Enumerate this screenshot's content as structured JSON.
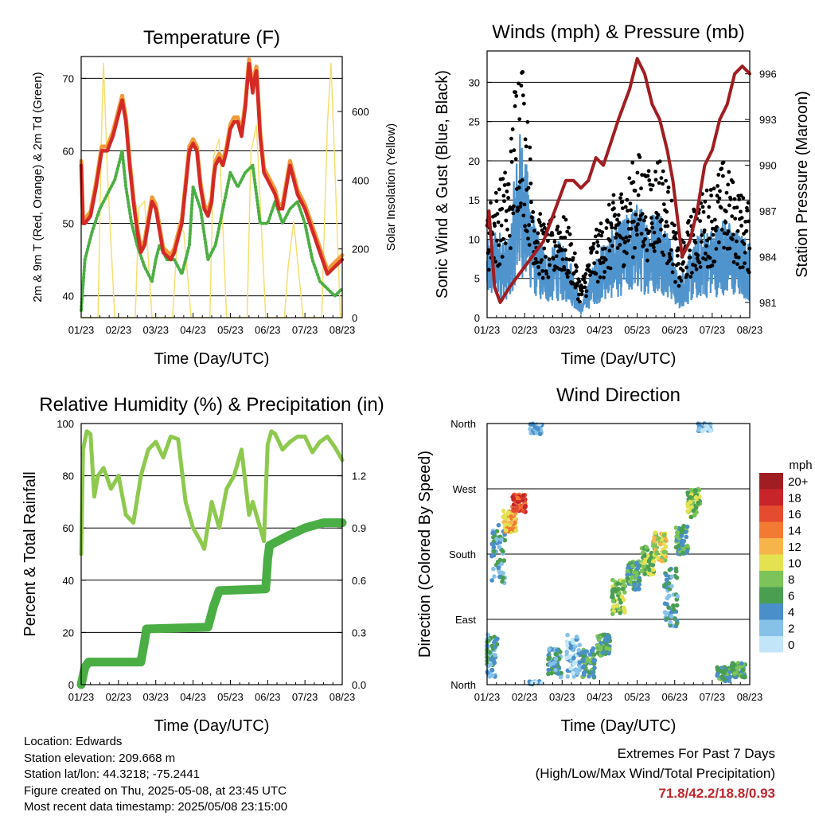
{
  "chart_data": [
    {
      "type": "line",
      "title": "Temperature (F)",
      "xlabel": "Time (Day/UTC)",
      "ylabel": "2m & 9m T (Red, Orange) & 2m Td (Green)",
      "y2label": "Solar Insolation (Yellow)",
      "x_ticks": [
        "01/23",
        "02/23",
        "03/23",
        "04/23",
        "05/23",
        "06/23",
        "07/23",
        "08/23"
      ],
      "ylim": [
        37,
        73
      ],
      "y_ticks": [
        40,
        50,
        60,
        70
      ],
      "y2lim": [
        0,
        760
      ],
      "y2_ticks": [
        0,
        200,
        400,
        600
      ],
      "x_days": [
        1,
        8
      ],
      "colors": {
        "t2m": "#d42a26",
        "t9m": "#f29a3a",
        "td": "#4cae44",
        "solar": "#f5df6e"
      },
      "series": [
        {
          "name": "2m T",
          "x": [
            1.0,
            1.05,
            1.1,
            1.25,
            1.4,
            1.55,
            1.7,
            1.85,
            2.0,
            2.1,
            2.2,
            2.3,
            2.4,
            2.5,
            2.6,
            2.7,
            2.8,
            2.9,
            3.0,
            3.2,
            3.4,
            3.5,
            3.6,
            3.7,
            3.8,
            3.9,
            4.0,
            4.1,
            4.2,
            4.3,
            4.4,
            4.5,
            4.55,
            4.6,
            4.7,
            4.8,
            4.9,
            5.0,
            5.1,
            5.2,
            5.3,
            5.4,
            5.5,
            5.55,
            5.6,
            5.65,
            5.7,
            5.8,
            5.9,
            6.0,
            6.1,
            6.2,
            6.3,
            6.4,
            6.5,
            6.6,
            6.8,
            7.0,
            7.2,
            7.4,
            7.6,
            7.8,
            8.0
          ],
          "y": [
            58,
            50,
            50,
            51,
            55,
            60,
            60,
            62,
            65,
            67,
            64,
            58,
            53,
            49,
            46,
            47,
            50,
            53,
            52,
            46,
            45,
            46,
            48,
            50,
            55,
            60,
            61,
            60,
            55,
            52,
            51,
            53,
            56,
            58,
            59,
            58,
            60,
            63,
            64,
            64,
            62,
            66,
            72,
            70,
            68,
            70,
            71,
            62,
            57,
            56,
            55,
            54,
            52,
            52,
            55,
            58,
            54,
            52,
            49,
            46,
            43,
            44,
            45
          ]
        },
        {
          "name": "2m Td",
          "x": [
            1.0,
            1.1,
            1.3,
            1.5,
            1.7,
            1.9,
            2.0,
            2.1,
            2.2,
            2.35,
            2.5,
            2.7,
            2.9,
            3.0,
            3.1,
            3.3,
            3.5,
            3.7,
            3.9,
            4.0,
            4.2,
            4.4,
            4.6,
            4.8,
            5.0,
            5.2,
            5.4,
            5.6,
            5.8,
            6.0,
            6.2,
            6.4,
            6.6,
            6.8,
            7.0,
            7.2,
            7.4,
            7.6,
            7.8,
            8.0
          ],
          "y": [
            38,
            45,
            49,
            52,
            54,
            56,
            58,
            60,
            55,
            50,
            47,
            44,
            42,
            45,
            47,
            45,
            45,
            43,
            47,
            55,
            52,
            45,
            47,
            52,
            57,
            55,
            57,
            58,
            50,
            50,
            53,
            50,
            52,
            53,
            50,
            45,
            42,
            41,
            40,
            41
          ]
        },
        {
          "name": "Solar Insolation",
          "x": [
            1.0,
            1.45,
            1.55,
            1.6,
            1.7,
            1.9,
            2.45,
            2.55,
            2.7,
            2.9,
            3.45,
            3.6,
            3.75,
            3.95,
            4.45,
            4.55,
            4.7,
            4.9,
            5.45,
            5.55,
            5.7,
            5.95,
            6.45,
            6.55,
            6.7,
            6.95,
            7.45,
            7.6,
            7.7,
            7.95,
            8.0
          ],
          "y": [
            0,
            0,
            560,
            740,
            430,
            0,
            0,
            320,
            340,
            0,
            0,
            270,
            250,
            0,
            0,
            470,
            520,
            0,
            0,
            480,
            560,
            0,
            0,
            150,
            280,
            0,
            0,
            560,
            740,
            0,
            0
          ]
        }
      ]
    },
    {
      "type": "line",
      "title": "Winds (mph) & Pressure (mb)",
      "xlabel": "Time (Day/UTC)",
      "ylabel": "Sonic Wind & Gust (Blue, Black)",
      "y2label": "Station Pressure (Maroon)",
      "x_ticks": [
        "01/23",
        "02/23",
        "03/23",
        "04/23",
        "05/23",
        "06/23",
        "07/23",
        "08/23"
      ],
      "ylim": [
        0,
        34
      ],
      "y_ticks": [
        0,
        5,
        10,
        15,
        20,
        25,
        30
      ],
      "y2lim": [
        980,
        997.5
      ],
      "y2_ticks": [
        981,
        984,
        987,
        990,
        993,
        996
      ],
      "x_days": [
        1,
        8
      ],
      "colors": {
        "wind": "#4f94cd",
        "gust": "#000000",
        "pressure": "#a11d21"
      },
      "series": [
        {
          "name": "Wind",
          "x": [
            1.0,
            1.3,
            1.6,
            1.75,
            1.9,
            2.1,
            2.3,
            2.6,
            2.9,
            3.2,
            3.5,
            3.8,
            4.1,
            4.4,
            4.7,
            5.0,
            5.3,
            5.6,
            5.9,
            6.1,
            6.4,
            6.7,
            7.0,
            7.3,
            7.6,
            8.0
          ],
          "y": [
            6,
            7,
            6,
            12,
            15,
            11,
            7,
            5,
            6,
            5,
            1,
            4,
            6,
            7,
            8,
            9,
            8,
            9,
            6,
            3,
            5,
            7,
            7,
            8,
            7,
            6
          ]
        },
        {
          "name": "Gust",
          "x": [
            1.0,
            1.3,
            1.6,
            1.75,
            1.9,
            2.1,
            2.3,
            2.6,
            2.9,
            3.2,
            3.5,
            3.8,
            4.1,
            4.4,
            4.7,
            5.0,
            5.3,
            5.6,
            5.9,
            6.1,
            6.4,
            6.7,
            7.0,
            7.3,
            7.6,
            8.0
          ],
          "y": [
            10,
            12,
            14,
            22,
            25,
            17,
            10,
            8,
            10,
            8,
            3,
            7,
            9,
            11,
            12,
            15,
            13,
            15,
            11,
            6,
            9,
            11,
            12,
            14,
            12,
            10
          ]
        },
        {
          "name": "Station Pressure",
          "x": [
            1.0,
            1.05,
            1.2,
            1.35,
            1.6,
            1.9,
            2.2,
            2.5,
            2.8,
            3.1,
            3.3,
            3.5,
            3.7,
            3.9,
            4.1,
            4.3,
            4.5,
            4.8,
            5.0,
            5.2,
            5.4,
            5.6,
            5.8,
            5.95,
            6.2,
            6.4,
            6.6,
            6.8,
            7.0,
            7.2,
            7.4,
            7.6,
            7.8,
            8.0
          ],
          "y": [
            986,
            987,
            982,
            981,
            982,
            983,
            984,
            985,
            987,
            989,
            989,
            988.5,
            989,
            990.5,
            990,
            991.5,
            993,
            995,
            997,
            996,
            994,
            993,
            991,
            989,
            984,
            985,
            987,
            990,
            991,
            993,
            994,
            996,
            996.5,
            996
          ]
        }
      ]
    },
    {
      "type": "line",
      "title": "Relative Humidity (%) & Precipitation (in)",
      "xlabel": "Time (Day/UTC)",
      "ylabel": "Percent & Total Rainfall",
      "x_ticks": [
        "01/23",
        "02/23",
        "03/23",
        "04/23",
        "05/23",
        "06/23",
        "07/23",
        "08/23"
      ],
      "ylim": [
        0,
        100
      ],
      "y_ticks": [
        0,
        20,
        40,
        60,
        80,
        100
      ],
      "y2lim": [
        0,
        1.5
      ],
      "y2_ticks": [
        0.0,
        0.3,
        0.6,
        0.9,
        1.2
      ],
      "x_days": [
        1,
        8
      ],
      "colors": {
        "rh": "#8dc94e",
        "precip": "#4aae45"
      },
      "series": [
        {
          "name": "Relative Humidity",
          "x": [
            1.0,
            1.05,
            1.15,
            1.25,
            1.35,
            1.45,
            1.6,
            1.8,
            2.0,
            2.2,
            2.4,
            2.6,
            2.8,
            3.0,
            3.2,
            3.4,
            3.6,
            3.8,
            4.0,
            4.2,
            4.3,
            4.5,
            4.7,
            4.9,
            5.1,
            5.3,
            5.5,
            5.6,
            5.8,
            5.9,
            6.0,
            6.1,
            6.2,
            6.4,
            6.6,
            6.8,
            7.0,
            7.2,
            7.4,
            7.6,
            7.8,
            8.0
          ],
          "y": [
            50,
            90,
            97,
            96,
            72,
            80,
            83,
            75,
            80,
            65,
            62,
            80,
            90,
            93,
            87,
            95,
            94,
            70,
            60,
            55,
            52,
            70,
            60,
            75,
            80,
            90,
            65,
            70,
            60,
            55,
            92,
            97,
            96,
            90,
            93,
            95,
            95,
            89,
            93,
            95,
            91,
            86
          ]
        },
        {
          "name": "Total Precipitation",
          "x": [
            1.0,
            1.1,
            1.2,
            2.6,
            2.7,
            2.75,
            4.4,
            4.55,
            4.7,
            5.95,
            6.0,
            6.05,
            6.5,
            7.0,
            7.5,
            8.0
          ],
          "y": [
            0.0,
            0.1,
            0.13,
            0.13,
            0.25,
            0.32,
            0.33,
            0.45,
            0.54,
            0.55,
            0.72,
            0.8,
            0.85,
            0.9,
            0.93,
            0.93
          ]
        }
      ]
    },
    {
      "type": "scatter",
      "title": "Wind Direction",
      "xlabel": "Time (Day/UTC)",
      "ylabel": "Direction (Colored By Speed)",
      "x_ticks": [
        "01/23",
        "02/23",
        "03/23",
        "04/23",
        "05/23",
        "06/23",
        "07/23",
        "08/23"
      ],
      "y_ticks": [
        "North",
        "East",
        "South",
        "West",
        "North"
      ],
      "ylim": [
        0,
        360
      ],
      "x_days": [
        1,
        8
      ],
      "legend_title": "mph",
      "legend_labels": [
        "0",
        "2",
        "4",
        "6",
        "8",
        "10",
        "12",
        "14",
        "16",
        "18",
        "20+"
      ],
      "legend_colors": [
        "#c2e6f7",
        "#86c1e8",
        "#4a8fc9",
        "#4a9e52",
        "#7cc35a",
        "#e5e251",
        "#f7b44a",
        "#f37a32",
        "#e44b2f",
        "#c8252a",
        "#a01d22"
      ],
      "clusters": [
        {
          "x": 1.1,
          "dir": 40,
          "spread": 30,
          "speed": 4
        },
        {
          "x": 1.3,
          "dir": 180,
          "spread": 40,
          "speed": 4
        },
        {
          "x": 1.6,
          "dir": 225,
          "spread": 15,
          "speed": 12
        },
        {
          "x": 1.85,
          "dir": 250,
          "spread": 12,
          "speed": 16
        },
        {
          "x": 2.3,
          "dir": 355,
          "spread": 10,
          "speed": 2
        },
        {
          "x": 2.8,
          "dir": 30,
          "spread": 20,
          "speed": 4
        },
        {
          "x": 3.3,
          "dir": 40,
          "spread": 30,
          "speed": 2
        },
        {
          "x": 3.7,
          "dir": 30,
          "spread": 20,
          "speed": 6
        },
        {
          "x": 4.1,
          "dir": 55,
          "spread": 15,
          "speed": 6
        },
        {
          "x": 4.5,
          "dir": 120,
          "spread": 25,
          "speed": 8
        },
        {
          "x": 4.9,
          "dir": 150,
          "spread": 20,
          "speed": 6
        },
        {
          "x": 5.3,
          "dir": 170,
          "spread": 20,
          "speed": 8
        },
        {
          "x": 5.6,
          "dir": 190,
          "spread": 20,
          "speed": 10
        },
        {
          "x": 5.9,
          "dir": 120,
          "spread": 40,
          "speed": 4
        },
        {
          "x": 6.2,
          "dir": 200,
          "spread": 20,
          "speed": 6
        },
        {
          "x": 6.5,
          "dir": 250,
          "spread": 20,
          "speed": 8
        },
        {
          "x": 6.8,
          "dir": 355,
          "spread": 5,
          "speed": 2
        },
        {
          "x": 7.3,
          "dir": 15,
          "spread": 10,
          "speed": 6
        },
        {
          "x": 7.7,
          "dir": 20,
          "spread": 10,
          "speed": 6
        }
      ]
    }
  ],
  "info": {
    "location": "Location: Edwards",
    "elevation": "Station elevation: 209.668 m",
    "latlon": "Station lat/lon: 44.3218; -75.2441",
    "created": "Figure created on Thu, 2025-05-08, at 23:45 UTC",
    "latest": "Most recent data timestamp: 2025/05/08 23:15:00"
  },
  "extremes": {
    "title": "Extremes For Past 7 Days",
    "subtitle": "(High/Low/Max Wind/Total Precipitation)",
    "values": "71.8/42.2/18.8/0.93"
  }
}
